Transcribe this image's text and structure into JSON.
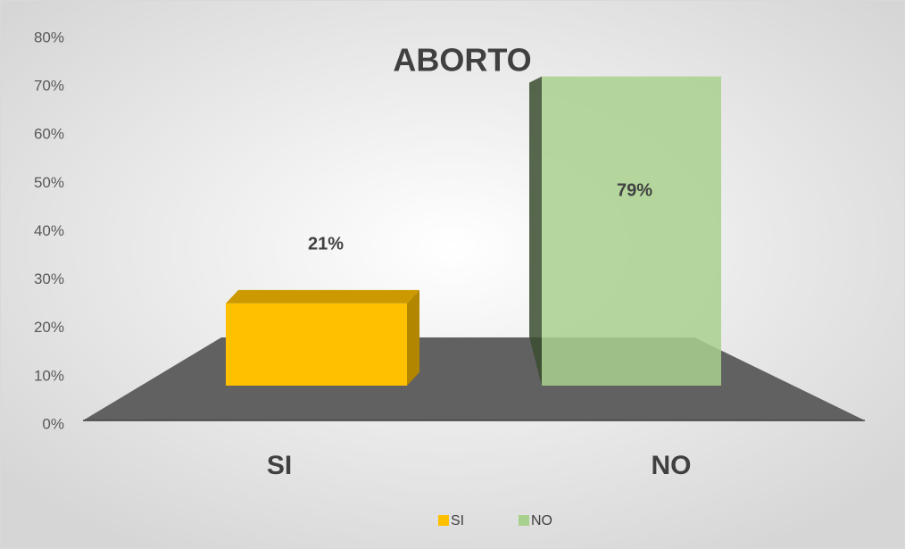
{
  "chart_data": {
    "type": "bar",
    "title": "ABORTO",
    "categories": [
      "SI",
      "NO"
    ],
    "values": [
      21,
      79
    ],
    "value_labels": [
      "21%",
      "79%"
    ],
    "colors": [
      "#ffc000",
      "#a9d18e"
    ],
    "ylim": [
      0,
      80
    ],
    "yticks": [
      {
        "value": 0,
        "label": "0%"
      },
      {
        "value": 10,
        "label": "10%"
      },
      {
        "value": 20,
        "label": "20%"
      },
      {
        "value": 30,
        "label": "30%"
      },
      {
        "value": 40,
        "label": "40%"
      },
      {
        "value": 50,
        "label": "50%"
      },
      {
        "value": 60,
        "label": "60%"
      },
      {
        "value": 70,
        "label": "70%"
      },
      {
        "value": 80,
        "label": "80%"
      }
    ],
    "legend": "bottom"
  }
}
